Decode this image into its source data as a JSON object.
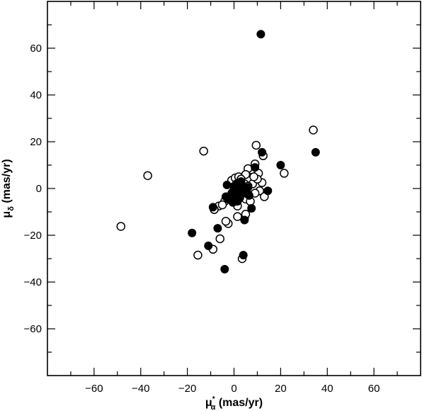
{
  "chart_data": {
    "type": "scatter",
    "xlabel": {
      "main": "μ",
      "sub": "α",
      "sup": "*",
      "unit": " (mas/yr)"
    },
    "ylabel": {
      "main": "μ",
      "sub": "δ",
      "unit": " (mas/yr)"
    },
    "xlim": [
      -80,
      80
    ],
    "ylim": [
      -80,
      80
    ],
    "xticks_labeled": [
      -60,
      -40,
      -20,
      0,
      20,
      40,
      60
    ],
    "yticks_labeled": [
      -60,
      -40,
      -20,
      0,
      20,
      40,
      60
    ],
    "minor_tick_step": 10,
    "tick_label_texts": {
      "-60": "−60",
      "-40": "−40",
      "-20": "−20",
      "0": "0",
      "20": "20",
      "40": "40",
      "60": "60"
    },
    "grid": false,
    "legend": "none",
    "series": [
      {
        "marker": "open-circle",
        "color": "#000000",
        "points": [
          [
            -48.5,
            -16.2
          ],
          [
            -37,
            5.5
          ],
          [
            -13,
            16
          ],
          [
            -15.5,
            -28.5
          ],
          [
            -9,
            -26
          ],
          [
            -6,
            -21.5
          ],
          [
            34,
            25
          ],
          [
            9.5,
            18.5
          ],
          [
            12.5,
            14
          ],
          [
            21.5,
            6.5
          ],
          [
            9,
            10.5
          ],
          [
            7.5,
            8
          ],
          [
            6,
            8.5
          ],
          [
            5,
            6
          ],
          [
            10.5,
            6.5
          ],
          [
            12,
            2.5
          ],
          [
            11,
            -1
          ],
          [
            13,
            -3.5
          ],
          [
            9,
            -2
          ],
          [
            8,
            2
          ],
          [
            4.5,
            -12.5
          ],
          [
            5,
            -11
          ],
          [
            1.5,
            -12
          ],
          [
            -2.5,
            -15
          ],
          [
            -3.5,
            -14
          ],
          [
            -6.5,
            -7.5
          ],
          [
            -8.5,
            -9
          ],
          [
            -4,
            -5.5
          ],
          [
            -2,
            -4.5
          ],
          [
            -1,
            3.5
          ],
          [
            0.5,
            4.5
          ],
          [
            2,
            5
          ],
          [
            3,
            4
          ],
          [
            4.5,
            2
          ],
          [
            6,
            1
          ],
          [
            -0.5,
            -1.5
          ],
          [
            1,
            -2.5
          ],
          [
            2,
            -1
          ],
          [
            3.5,
            -0.5
          ],
          [
            5,
            -4.5
          ],
          [
            7,
            -5.5
          ],
          [
            3.5,
            -30
          ],
          [
            1.5,
            -7.5
          ],
          [
            -5,
            -7
          ],
          [
            10,
            4
          ],
          [
            8.5,
            5
          ],
          [
            2.5,
            2.5
          ],
          [
            6,
            -2.5
          ]
        ]
      },
      {
        "marker": "filled-circle",
        "color": "#000000",
        "points": [
          [
            11.5,
            66
          ],
          [
            35,
            15.5
          ],
          [
            20,
            10
          ],
          [
            14.5,
            -1
          ],
          [
            12,
            15.5
          ],
          [
            9,
            9
          ],
          [
            -18,
            -19
          ],
          [
            -11,
            -24.5
          ],
          [
            -7,
            -17
          ],
          [
            -4,
            -34.5
          ],
          [
            4,
            -28.5
          ],
          [
            4.5,
            -13.5
          ],
          [
            7.5,
            -8.5
          ],
          [
            -9,
            -8
          ],
          [
            -3,
            1.5
          ],
          [
            -1,
            -2
          ],
          [
            0,
            -3
          ],
          [
            1,
            0
          ],
          [
            2,
            1.5
          ],
          [
            3,
            -1.5
          ],
          [
            4,
            0.5
          ],
          [
            5,
            -1
          ],
          [
            6,
            0.5
          ],
          [
            0.5,
            -5
          ],
          [
            -0.5,
            -6
          ],
          [
            2.5,
            -4
          ],
          [
            1,
            2
          ],
          [
            3,
            3
          ],
          [
            -1.5,
            -3
          ],
          [
            0,
            -1
          ],
          [
            2,
            -2.5
          ],
          [
            4,
            -2
          ],
          [
            1.5,
            -5.5
          ],
          [
            -2.5,
            -4.5
          ],
          [
            -3.5,
            -3.5
          ],
          [
            6.5,
            -3
          ],
          [
            0,
            1
          ]
        ]
      }
    ]
  }
}
